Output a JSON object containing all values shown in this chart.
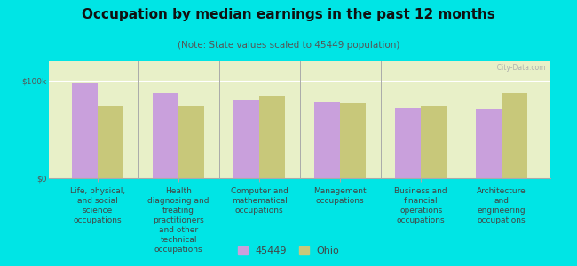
{
  "title": "Occupation by median earnings in the past 12 months",
  "subtitle": "(Note: State values scaled to 45449 population)",
  "categories": [
    "Life, physical,\nand social\nscience\noccupations",
    "Health\ndiagnosing and\ntreating\npractitioners\nand other\ntechnical\noccupations",
    "Computer and\nmathematical\noccupations",
    "Management\noccupations",
    "Business and\nfinancial\noperations\noccupations",
    "Architecture\nand\nengineering\noccupations"
  ],
  "values_45449": [
    97000,
    87000,
    80000,
    78000,
    72000,
    71000
  ],
  "values_ohio": [
    74000,
    74000,
    85000,
    77000,
    74000,
    87000
  ],
  "color_45449": "#c9a0dc",
  "color_ohio": "#c8c87a",
  "background_outer": "#00e5e5",
  "background_plot": "#e8f0c8",
  "ylabel_ticks": [
    "$0",
    "$100k"
  ],
  "ytick_values": [
    0,
    100000
  ],
  "ylim": [
    0,
    120000
  ],
  "legend_label_1": "45449",
  "legend_label_2": "Ohio",
  "bar_width": 0.32,
  "title_fontsize": 11,
  "subtitle_fontsize": 7.5,
  "tick_label_fontsize": 6.5,
  "legend_fontsize": 8
}
